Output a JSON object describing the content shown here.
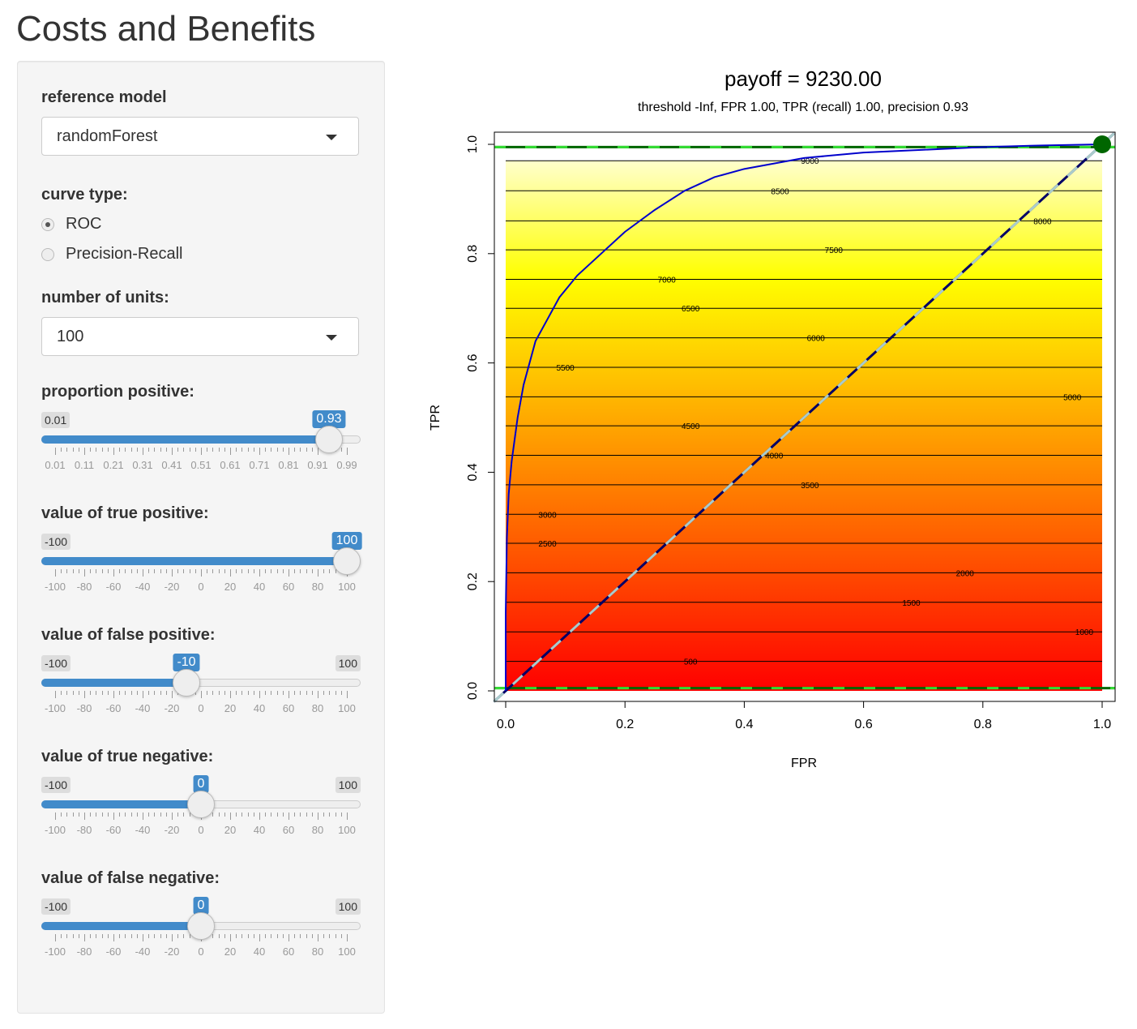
{
  "app": {
    "title": "Costs and Benefits"
  },
  "controls": {
    "reference_model": {
      "label": "reference model",
      "value": "randomForest"
    },
    "curve_type": {
      "label": "curve type:",
      "options": [
        {
          "label": "ROC",
          "selected": true
        },
        {
          "label": "Precision-Recall",
          "selected": false
        }
      ]
    },
    "number_of_units": {
      "label": "number of units:",
      "value": "100"
    },
    "sliders": [
      {
        "key": "proportion_positive",
        "label": "proportion positive:",
        "min_label": "0.01",
        "max_label": "0.99",
        "show_max": false,
        "value_label": "0.93",
        "fraction": 0.9388,
        "tick_labels": [
          "0.01",
          "0.11",
          "0.21",
          "0.31",
          "0.41",
          "0.51",
          "0.61",
          "0.71",
          "0.81",
          "0.91",
          "0.99"
        ]
      },
      {
        "key": "true_positive",
        "label": "value of true positive:",
        "min_label": "-100",
        "max_label": "100",
        "show_max": false,
        "value_label": "100",
        "fraction": 1.0,
        "tick_labels": [
          "-100",
          "-80",
          "-60",
          "-40",
          "-20",
          "0",
          "20",
          "40",
          "60",
          "80",
          "100"
        ]
      },
      {
        "key": "false_positive",
        "label": "value of false positive:",
        "min_label": "-100",
        "max_label": "100",
        "show_max": true,
        "value_label": "-10",
        "fraction": 0.45,
        "tick_labels": [
          "-100",
          "-80",
          "-60",
          "-40",
          "-20",
          "0",
          "20",
          "40",
          "60",
          "80",
          "100"
        ]
      },
      {
        "key": "true_negative",
        "label": "value of true negative:",
        "min_label": "-100",
        "max_label": "100",
        "show_max": true,
        "value_label": "0",
        "fraction": 0.5,
        "tick_labels": [
          "-100",
          "-80",
          "-60",
          "-40",
          "-20",
          "0",
          "20",
          "40",
          "60",
          "80",
          "100"
        ]
      },
      {
        "key": "false_negative",
        "label": "value of false negative:",
        "min_label": "-100",
        "max_label": "100",
        "show_max": true,
        "value_label": "0",
        "fraction": 0.5,
        "tick_labels": [
          "-100",
          "-80",
          "-60",
          "-40",
          "-20",
          "0",
          "20",
          "40",
          "60",
          "80",
          "100"
        ]
      }
    ]
  },
  "chart_data": {
    "type": "line",
    "title": "payoff = 9230.00",
    "subtitle": "threshold -Inf, FPR 1.00, TPR (recall) 1.00, precision 0.93",
    "xlabel": "FPR",
    "ylabel": "TPR",
    "xlim": [
      0,
      1
    ],
    "ylim": [
      0,
      1
    ],
    "x_ticks": [
      "0.0",
      "0.2",
      "0.4",
      "0.6",
      "0.8",
      "1.0"
    ],
    "y_ticks": [
      "0.0",
      "0.2",
      "0.4",
      "0.6",
      "0.8",
      "1.0"
    ],
    "roc_curve": {
      "color": "#0000cc",
      "x": [
        0,
        0,
        0.002,
        0.005,
        0.01,
        0.02,
        0.03,
        0.04,
        0.05,
        0.07,
        0.09,
        0.12,
        0.16,
        0.2,
        0.25,
        0.3,
        0.35,
        0.4,
        0.45,
        0.5,
        0.6,
        0.7,
        0.8,
        0.9,
        1.0
      ],
      "y": [
        0,
        0.14,
        0.28,
        0.36,
        0.42,
        0.5,
        0.56,
        0.6,
        0.64,
        0.68,
        0.72,
        0.76,
        0.8,
        0.84,
        0.88,
        0.915,
        0.94,
        0.955,
        0.965,
        0.975,
        0.985,
        0.99,
        0.995,
        0.998,
        1.0
      ]
    },
    "diagonal": {
      "x": [
        0,
        1
      ],
      "y": [
        0,
        1
      ],
      "colors": [
        "#000066",
        "#aacccc"
      ]
    },
    "reference_lines": {
      "y": [
        0.005,
        0.995
      ],
      "colors": [
        "#006600",
        "#33dd33"
      ]
    },
    "selected_point": {
      "x": 1.0,
      "y": 1.0,
      "color": "#006600"
    },
    "payoff_gradient": [
      "#ffffcc",
      "#ffff00",
      "#ffa500",
      "#ff0000"
    ],
    "contour_levels": [
      {
        "value": 9000,
        "tpr": 0.97,
        "label": "9000",
        "label_fpr": 0.51
      },
      {
        "value": 8500,
        "tpr": 0.915,
        "label": "8500",
        "label_fpr": 0.46
      },
      {
        "value": 8000,
        "tpr": 0.86,
        "label": "8000",
        "label_fpr": 0.9
      },
      {
        "value": 7500,
        "tpr": 0.807,
        "label": "7500",
        "label_fpr": 0.55
      },
      {
        "value": 7000,
        "tpr": 0.753,
        "label": "7000",
        "label_fpr": 0.27
      },
      {
        "value": 6500,
        "tpr": 0.7,
        "label": "6500",
        "label_fpr": 0.31
      },
      {
        "value": 6000,
        "tpr": 0.646,
        "label": "6000",
        "label_fpr": 0.52
      },
      {
        "value": 5500,
        "tpr": 0.592,
        "label": "5500",
        "label_fpr": 0.1
      },
      {
        "value": 5000,
        "tpr": 0.538,
        "label": "5000",
        "label_fpr": 0.95
      },
      {
        "value": 4500,
        "tpr": 0.485,
        "label": "4500",
        "label_fpr": 0.31
      },
      {
        "value": 4000,
        "tpr": 0.431,
        "label": "4000",
        "label_fpr": 0.45
      },
      {
        "value": 3500,
        "tpr": 0.377,
        "label": "3500",
        "label_fpr": 0.51
      },
      {
        "value": 3000,
        "tpr": 0.323,
        "label": "3000",
        "label_fpr": 0.07
      },
      {
        "value": 2500,
        "tpr": 0.27,
        "label": "2500",
        "label_fpr": 0.07
      },
      {
        "value": 2000,
        "tpr": 0.216,
        "label": "2000",
        "label_fpr": 0.77
      },
      {
        "value": 1500,
        "tpr": 0.162,
        "label": "1500",
        "label_fpr": 0.68
      },
      {
        "value": 1000,
        "tpr": 0.108,
        "label": "1000",
        "label_fpr": 0.97
      },
      {
        "value": 500,
        "tpr": 0.054,
        "label": "500",
        "label_fpr": 0.31
      }
    ]
  }
}
